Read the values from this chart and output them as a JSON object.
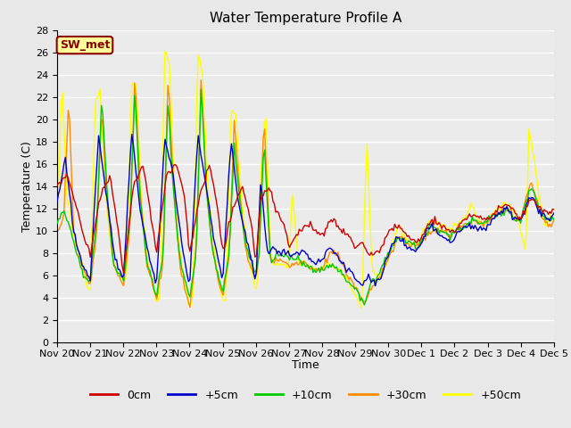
{
  "title": "Water Temperature Profile A",
  "xlabel": "Time",
  "ylabel": "Temperature (C)",
  "ylim": [
    0,
    28
  ],
  "yticks": [
    0,
    2,
    4,
    6,
    8,
    10,
    12,
    14,
    16,
    18,
    20,
    22,
    24,
    26,
    28
  ],
  "legend_label": "SW_met",
  "legend_text_color": "#8B0000",
  "legend_box_facecolor": "#FFFF99",
  "legend_box_edgecolor": "#8B0000",
  "colors": {
    "0cm": "#CC0000",
    "+5cm": "#0000CC",
    "+10cm": "#00CC00",
    "+30cm": "#FF8C00",
    "+50cm": "#FFFF00"
  },
  "bg_color": "#E8E8E8",
  "plot_bg_color": "#EBEBEB",
  "grid_color": "#FFFFFF",
  "date_labels": [
    "Nov 20",
    "Nov 21",
    "Nov 22",
    "Nov 23",
    "Nov 24",
    "Nov 25",
    "Nov 26",
    "Nov 27",
    "Nov 28",
    "Nov 29",
    "Nov 30",
    "Dec 1",
    "Dec 2",
    "Dec 3",
    "Dec 4",
    "Dec 5"
  ],
  "figsize": [
    6.4,
    4.8
  ],
  "dpi": 100,
  "title_fontsize": 11,
  "axis_label_fontsize": 9,
  "tick_fontsize": 8,
  "legend_fontsize": 9,
  "linewidth": 1.0
}
